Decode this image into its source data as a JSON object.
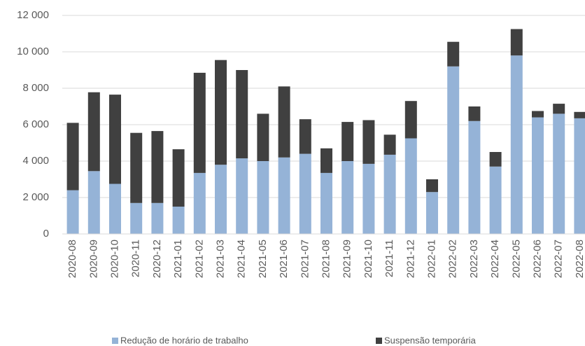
{
  "chart_data": {
    "type": "stacked_bar",
    "categories": [
      "2020-08",
      "2020-09",
      "2020-10",
      "2020-11",
      "2020-12",
      "2021-01",
      "2021-02",
      "2021-03",
      "2021-04",
      "2021-05",
      "2021-06",
      "2021-07",
      "2021-08",
      "2021-09",
      "2021-10",
      "2021-11",
      "2021-12",
      "2022-01",
      "2022-02",
      "2022-03",
      "2022-04",
      "2022-05",
      "2022-06",
      "2022-07",
      "2022-08"
    ],
    "series": [
      {
        "name": "Redução de horário de trabalho",
        "color": "#95b3d7",
        "values": [
          2400,
          3450,
          2750,
          1700,
          1700,
          1500,
          3350,
          3800,
          4150,
          4000,
          4200,
          4400,
          3350,
          4000,
          3850,
          4350,
          5250,
          2300,
          9200,
          6200,
          3700,
          9800,
          6400,
          6600,
          6350
        ]
      },
      {
        "name": "Suspensão temporária",
        "color": "#404040",
        "values": [
          3700,
          4330,
          4900,
          3850,
          3950,
          3150,
          5500,
          5750,
          4850,
          2600,
          3900,
          1900,
          1350,
          2150,
          2400,
          1100,
          2050,
          700,
          1350,
          800,
          800,
          1450,
          350,
          550,
          350
        ]
      }
    ],
    "ylim": [
      0,
      12000
    ],
    "yticks": [
      0,
      {
        "value": 2000,
        "label": "2 000"
      },
      {
        "value": 4000,
        "label": "4 000"
      },
      {
        "value": 6000,
        "label": "6 000"
      },
      {
        "value": 8000,
        "label": "8 000"
      },
      {
        "value": 10000,
        "label": "10 000"
      },
      {
        "value": 12000,
        "label": "12 000"
      }
    ],
    "grid": true,
    "legend": "bottom"
  }
}
